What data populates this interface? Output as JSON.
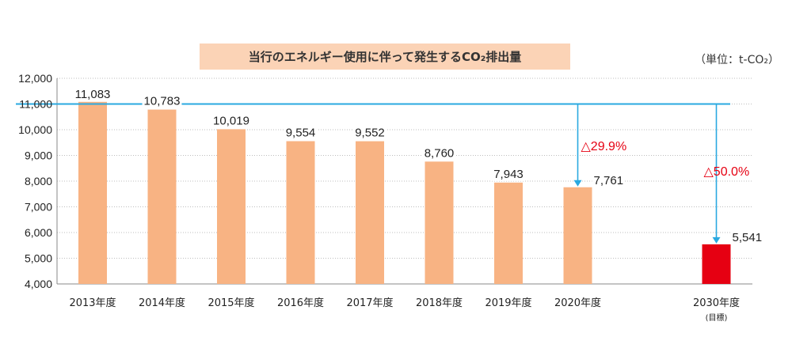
{
  "title": "当行のエネルギー使用に伴って発生するCO₂排出量",
  "unit": "（単位：t-CO₂）",
  "colors": {
    "bar": "#f8b383",
    "target_bar": "#e60012",
    "reference_line": "#2aa9e0",
    "title_bg": "#fbd3b6",
    "reduction_text": "#e60012"
  },
  "chart_data": {
    "type": "bar",
    "categories": [
      "2013年度",
      "2014年度",
      "2015年度",
      "2016年度",
      "2017年度",
      "2018年度",
      "2019年度",
      "2020年度",
      "",
      "2030年度"
    ],
    "category_sub_labels": [
      "",
      "",
      "",
      "",
      "",
      "",
      "",
      "",
      "",
      "(目標)"
    ],
    "values": [
      11083,
      10783,
      10019,
      9554,
      9552,
      8760,
      7943,
      7761,
      null,
      5541
    ],
    "value_labels": [
      "11,083",
      "10,783",
      "10,019",
      "9,554",
      "9,552",
      "8,760",
      "7,943",
      "7,761",
      "",
      "5,541"
    ],
    "highlight_index": 9,
    "ylim": [
      4000,
      12000
    ],
    "yticks": [
      4000,
      5000,
      6000,
      7000,
      8000,
      9000,
      10000,
      11000,
      12000
    ],
    "ytick_labels": [
      "4,000",
      "5,000",
      "6,000",
      "7,000",
      "8,000",
      "9,000",
      "10,000",
      "11,000",
      "12,000"
    ],
    "reference_line_value": 11000,
    "annotations": [
      {
        "text": "△29.9%",
        "target_index": 7
      },
      {
        "text": "△50.0%",
        "target_index": 9
      }
    ],
    "grid": "horizontal dotted"
  }
}
